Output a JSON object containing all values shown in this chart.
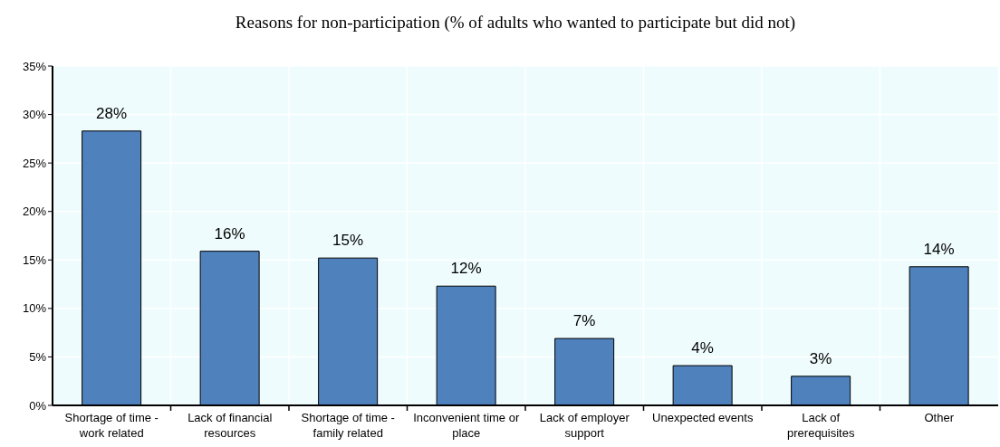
{
  "chart_data": {
    "type": "bar",
    "title": "Reasons for non-participation (% of adults who wanted to participate but did not)",
    "categories": [
      "Shortage of time - work related",
      "Lack of financial resources",
      "Shortage of time - family related",
      "Inconvenient time or place",
      "Lack of employer support",
      "Unexpected events",
      "Lack of prerequisites",
      "Other"
    ],
    "values": [
      28.3,
      15.9,
      15.2,
      12.3,
      6.9,
      4.1,
      3.0,
      14.3
    ],
    "value_labels": [
      "28%",
      "16%",
      "15%",
      "12%",
      "7%",
      "4%",
      "3%",
      "14%"
    ],
    "color": "#4f81bd",
    "ylim": [
      0,
      35
    ],
    "yticks": [
      {
        "value": 0,
        "label": "0%"
      },
      {
        "value": 5,
        "label": "5%"
      },
      {
        "value": 10,
        "label": "10%"
      },
      {
        "value": 15,
        "label": "15%"
      },
      {
        "value": 20,
        "label": "20%"
      },
      {
        "value": 25,
        "label": "25%"
      },
      {
        "value": 30,
        "label": "30%"
      },
      {
        "value": 35,
        "label": "35%"
      }
    ],
    "grid": true
  }
}
